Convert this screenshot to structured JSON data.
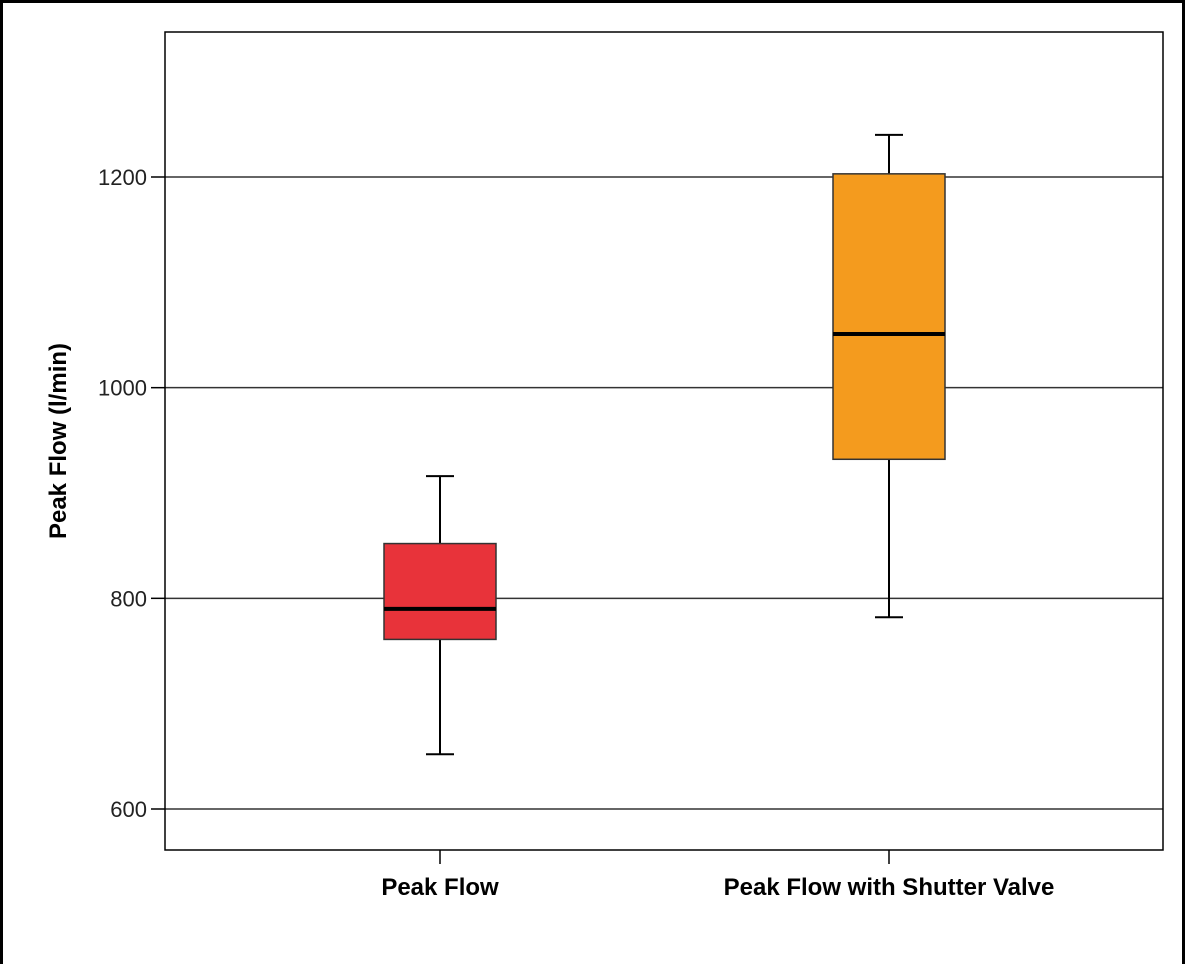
{
  "chart_data": {
    "type": "box",
    "title": "",
    "xlabel": "",
    "ylabel": "Peak Flow (l/min)",
    "ylim": [
      560,
      1340
    ],
    "yticks": [
      600,
      800,
      1000,
      1200
    ],
    "grid": true,
    "categories": [
      "Peak Flow",
      "Peak Flow with Shutter Valve"
    ],
    "boxes": [
      {
        "category": "Peak Flow",
        "whisker_low": 652,
        "q1": 761,
        "median": 790,
        "q3": 852,
        "whisker_high": 916,
        "color": "#e8333a"
      },
      {
        "category": "Peak Flow with Shutter Valve",
        "whisker_low": 782,
        "q1": 932,
        "median": 1051,
        "q3": 1203,
        "whisker_high": 1240,
        "color": "#f49b1e"
      }
    ]
  }
}
